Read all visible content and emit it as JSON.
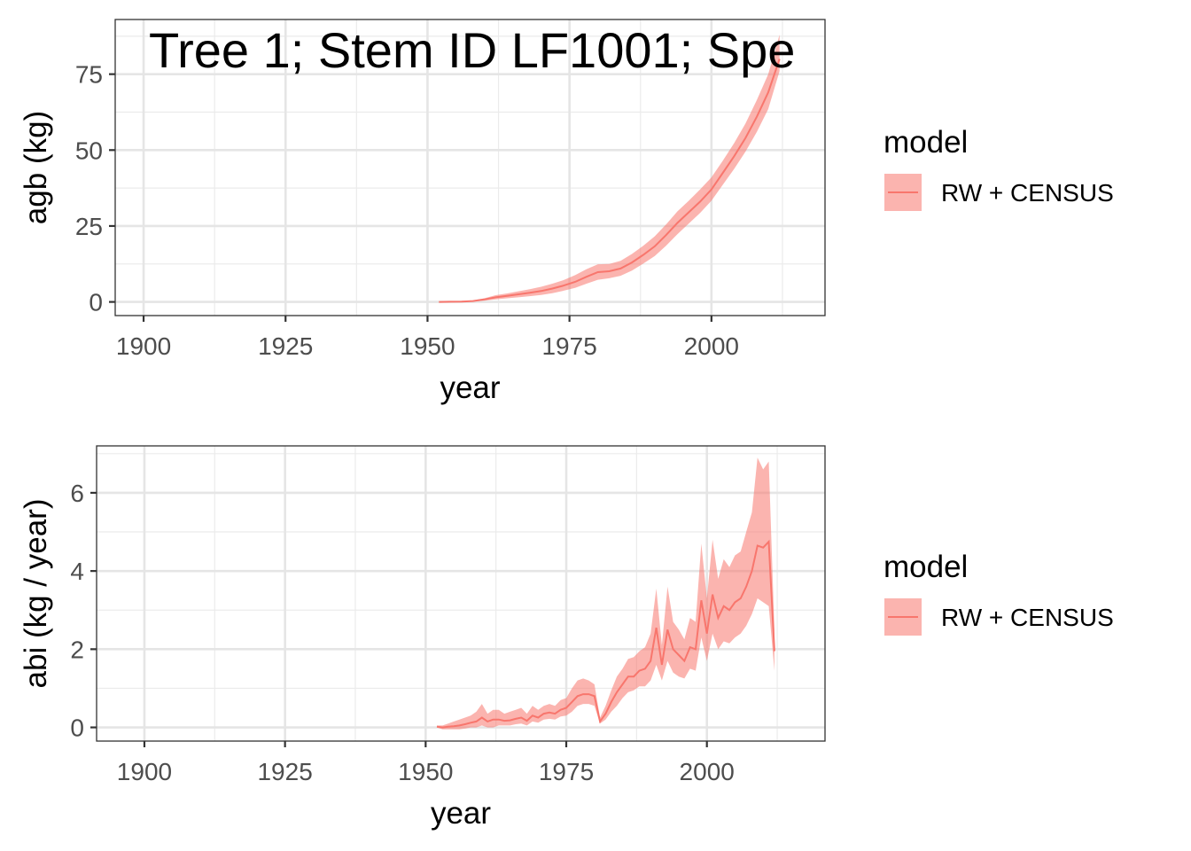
{
  "chart_data": [
    {
      "type": "line",
      "title": "Tree 1; Stem ID LF1001; Spe",
      "xlabel": "year",
      "ylabel": "agb (kg)",
      "xlim": [
        1895,
        2020
      ],
      "ylim": [
        -4.5,
        93
      ],
      "xticks": [
        1900,
        1925,
        1950,
        1975,
        2000
      ],
      "yticks": [
        0,
        25,
        50,
        75
      ],
      "grid": true,
      "legend": {
        "title": "model",
        "position": "right",
        "entries": [
          "RW + CENSUS"
        ]
      },
      "series": [
        {
          "name": "RW + CENSUS",
          "color": "#F8766D",
          "fill": "#F8766D",
          "x": [
            1952,
            1954,
            1956,
            1958,
            1960,
            1962,
            1964,
            1966,
            1968,
            1970,
            1972,
            1974,
            1976,
            1978,
            1980,
            1982,
            1984,
            1986,
            1988,
            1990,
            1992,
            1994,
            1996,
            1998,
            2000,
            2002,
            2004,
            2006,
            2008,
            2010,
            2012
          ],
          "y": [
            0,
            0.05,
            0.1,
            0.3,
            0.8,
            1.5,
            2.0,
            2.5,
            3.0,
            3.6,
            4.4,
            5.4,
            6.6,
            8.3,
            9.8,
            10.1,
            11.0,
            13.0,
            15.5,
            18.3,
            22.0,
            26.0,
            29.5,
            33.0,
            37.0,
            42.5,
            48.0,
            54.0,
            61.0,
            69.0,
            80.0
          ],
          "lower": [
            0,
            0.02,
            0.05,
            0.15,
            0.4,
            0.8,
            1.2,
            1.5,
            1.9,
            2.3,
            2.9,
            3.7,
            4.6,
            6.0,
            7.3,
            7.8,
            8.6,
            10.3,
            12.6,
            15.1,
            18.5,
            22.3,
            25.8,
            29.3,
            33.3,
            38.6,
            43.8,
            49.5,
            56.0,
            63.5,
            76.0
          ],
          "upper": [
            0,
            0.08,
            0.2,
            0.5,
            1.2,
            2.2,
            2.8,
            3.5,
            4.2,
            5.0,
            6.0,
            7.2,
            8.8,
            10.8,
            12.4,
            12.5,
            13.5,
            15.8,
            18.5,
            21.6,
            25.5,
            29.8,
            33.3,
            37.0,
            41.0,
            46.5,
            52.3,
            58.8,
            66.5,
            75.0,
            88.0
          ]
        }
      ]
    },
    {
      "type": "line",
      "title": "",
      "xlabel": "year",
      "ylabel": "abi (kg / year)",
      "xlim": [
        1891.5,
        2021
      ],
      "ylim": [
        -0.35,
        7.2
      ],
      "xticks": [
        1900,
        1925,
        1950,
        1975,
        2000
      ],
      "yticks": [
        0,
        2,
        4,
        6
      ],
      "grid": true,
      "legend": {
        "title": "model",
        "position": "right",
        "entries": [
          "RW + CENSUS"
        ]
      },
      "series": [
        {
          "name": "RW + CENSUS",
          "color": "#F8766D",
          "fill": "#F8766D",
          "x": [
            1952,
            1953,
            1954,
            1955,
            1956,
            1957,
            1958,
            1959,
            1960,
            1961,
            1962,
            1963,
            1964,
            1965,
            1966,
            1967,
            1968,
            1969,
            1970,
            1971,
            1972,
            1973,
            1974,
            1975,
            1976,
            1977,
            1978,
            1979,
            1980,
            1981,
            1982,
            1983,
            1984,
            1985,
            1986,
            1987,
            1988,
            1989,
            1990,
            1991,
            1992,
            1993,
            1994,
            1995,
            1996,
            1997,
            1998,
            1999,
            2000,
            2001,
            2002,
            2003,
            2004,
            2005,
            2006,
            2007,
            2008,
            2009,
            2010,
            2011,
            2012
          ],
          "y": [
            0.02,
            0.0,
            0.02,
            0.03,
            0.05,
            0.08,
            0.12,
            0.15,
            0.25,
            0.15,
            0.2,
            0.2,
            0.17,
            0.18,
            0.22,
            0.25,
            0.17,
            0.3,
            0.25,
            0.35,
            0.38,
            0.35,
            0.45,
            0.5,
            0.65,
            0.8,
            0.85,
            0.85,
            0.8,
            0.15,
            0.35,
            0.65,
            0.9,
            1.1,
            1.3,
            1.3,
            1.45,
            1.5,
            1.7,
            2.55,
            1.6,
            2.5,
            2.0,
            1.85,
            1.7,
            2.05,
            2.0,
            3.25,
            2.4,
            3.4,
            2.8,
            3.1,
            3.0,
            3.2,
            3.3,
            3.6,
            4.0,
            4.65,
            4.6,
            4.75,
            1.95
          ],
          "lower": [
            0.0,
            -0.05,
            -0.05,
            -0.05,
            -0.05,
            -0.03,
            0.0,
            0.0,
            0.05,
            0.0,
            0.0,
            0.05,
            0.05,
            0.05,
            0.08,
            0.1,
            0.05,
            0.15,
            0.12,
            0.2,
            0.22,
            0.2,
            0.28,
            0.3,
            0.4,
            0.55,
            0.6,
            0.6,
            0.55,
            0.1,
            0.2,
            0.4,
            0.55,
            0.75,
            0.9,
            0.95,
            1.05,
            1.05,
            1.2,
            1.6,
            1.2,
            1.7,
            1.4,
            1.3,
            1.25,
            1.5,
            1.45,
            2.3,
            1.7,
            2.4,
            2.0,
            2.2,
            2.15,
            2.3,
            2.4,
            2.6,
            2.9,
            3.3,
            3.2,
            3.1,
            1.45
          ],
          "upper": [
            0.05,
            0.05,
            0.1,
            0.15,
            0.2,
            0.25,
            0.3,
            0.4,
            0.6,
            0.35,
            0.45,
            0.45,
            0.35,
            0.4,
            0.45,
            0.5,
            0.35,
            0.55,
            0.45,
            0.55,
            0.6,
            0.55,
            0.7,
            0.75,
            1.0,
            1.2,
            1.25,
            1.2,
            1.1,
            0.25,
            0.55,
            0.95,
            1.3,
            1.5,
            1.75,
            1.8,
            1.95,
            2.05,
            2.4,
            3.55,
            2.1,
            3.6,
            2.7,
            2.5,
            2.25,
            2.8,
            2.7,
            4.7,
            3.3,
            4.8,
            3.8,
            4.3,
            4.1,
            4.4,
            4.5,
            5.0,
            5.5,
            6.9,
            6.6,
            6.8,
            2.5
          ]
        }
      ]
    }
  ]
}
